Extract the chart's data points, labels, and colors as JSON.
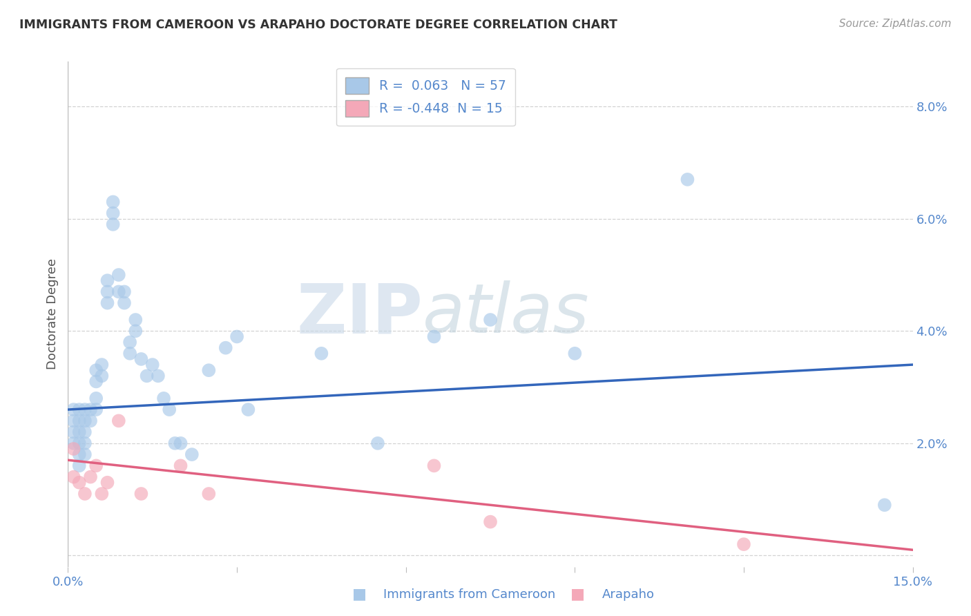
{
  "title": "IMMIGRANTS FROM CAMEROON VS ARAPAHO DOCTORATE DEGREE CORRELATION CHART",
  "source": "Source: ZipAtlas.com",
  "ylabel": "Doctorate Degree",
  "xmin": 0.0,
  "xmax": 0.15,
  "ymin": -0.002,
  "ymax": 0.088,
  "yticks": [
    0.0,
    0.02,
    0.04,
    0.06,
    0.08
  ],
  "ytick_labels": [
    "",
    "2.0%",
    "4.0%",
    "6.0%",
    "8.0%"
  ],
  "xticks": [
    0.0,
    0.03,
    0.06,
    0.09,
    0.12,
    0.15
  ],
  "xtick_labels": [
    "0.0%",
    "",
    "",
    "",
    "",
    "15.0%"
  ],
  "blue_R": 0.063,
  "blue_N": 57,
  "pink_R": -0.448,
  "pink_N": 15,
  "blue_color": "#a8c8e8",
  "pink_color": "#f4a8b8",
  "blue_line_color": "#3366bb",
  "pink_line_color": "#e06080",
  "legend_label_blue": "Immigrants from Cameroon",
  "legend_label_pink": "Arapaho",
  "watermark_zip": "ZIP",
  "watermark_atlas": "atlas",
  "background_color": "#ffffff",
  "grid_color": "#c8c8c8",
  "blue_x": [
    0.001,
    0.001,
    0.001,
    0.001,
    0.002,
    0.002,
    0.002,
    0.002,
    0.002,
    0.002,
    0.003,
    0.003,
    0.003,
    0.003,
    0.003,
    0.004,
    0.004,
    0.005,
    0.005,
    0.005,
    0.005,
    0.006,
    0.006,
    0.007,
    0.007,
    0.007,
    0.008,
    0.008,
    0.008,
    0.009,
    0.009,
    0.01,
    0.01,
    0.011,
    0.011,
    0.012,
    0.012,
    0.013,
    0.014,
    0.015,
    0.016,
    0.017,
    0.018,
    0.019,
    0.02,
    0.022,
    0.025,
    0.028,
    0.03,
    0.032,
    0.045,
    0.055,
    0.065,
    0.075,
    0.09,
    0.11,
    0.145
  ],
  "blue_y": [
    0.026,
    0.024,
    0.022,
    0.02,
    0.026,
    0.024,
    0.022,
    0.02,
    0.018,
    0.016,
    0.026,
    0.024,
    0.022,
    0.02,
    0.018,
    0.026,
    0.024,
    0.033,
    0.031,
    0.028,
    0.026,
    0.034,
    0.032,
    0.049,
    0.047,
    0.045,
    0.063,
    0.061,
    0.059,
    0.05,
    0.047,
    0.047,
    0.045,
    0.038,
    0.036,
    0.042,
    0.04,
    0.035,
    0.032,
    0.034,
    0.032,
    0.028,
    0.026,
    0.02,
    0.02,
    0.018,
    0.033,
    0.037,
    0.039,
    0.026,
    0.036,
    0.02,
    0.039,
    0.042,
    0.036,
    0.067,
    0.009
  ],
  "pink_x": [
    0.001,
    0.001,
    0.002,
    0.003,
    0.004,
    0.005,
    0.006,
    0.007,
    0.009,
    0.013,
    0.02,
    0.025,
    0.065,
    0.075,
    0.12
  ],
  "pink_y": [
    0.019,
    0.014,
    0.013,
    0.011,
    0.014,
    0.016,
    0.011,
    0.013,
    0.024,
    0.011,
    0.016,
    0.011,
    0.016,
    0.006,
    0.002
  ],
  "blue_line_x": [
    0.0,
    0.15
  ],
  "blue_line_y": [
    0.026,
    0.034
  ],
  "pink_line_x": [
    0.0,
    0.15
  ],
  "pink_line_y": [
    0.017,
    0.001
  ]
}
